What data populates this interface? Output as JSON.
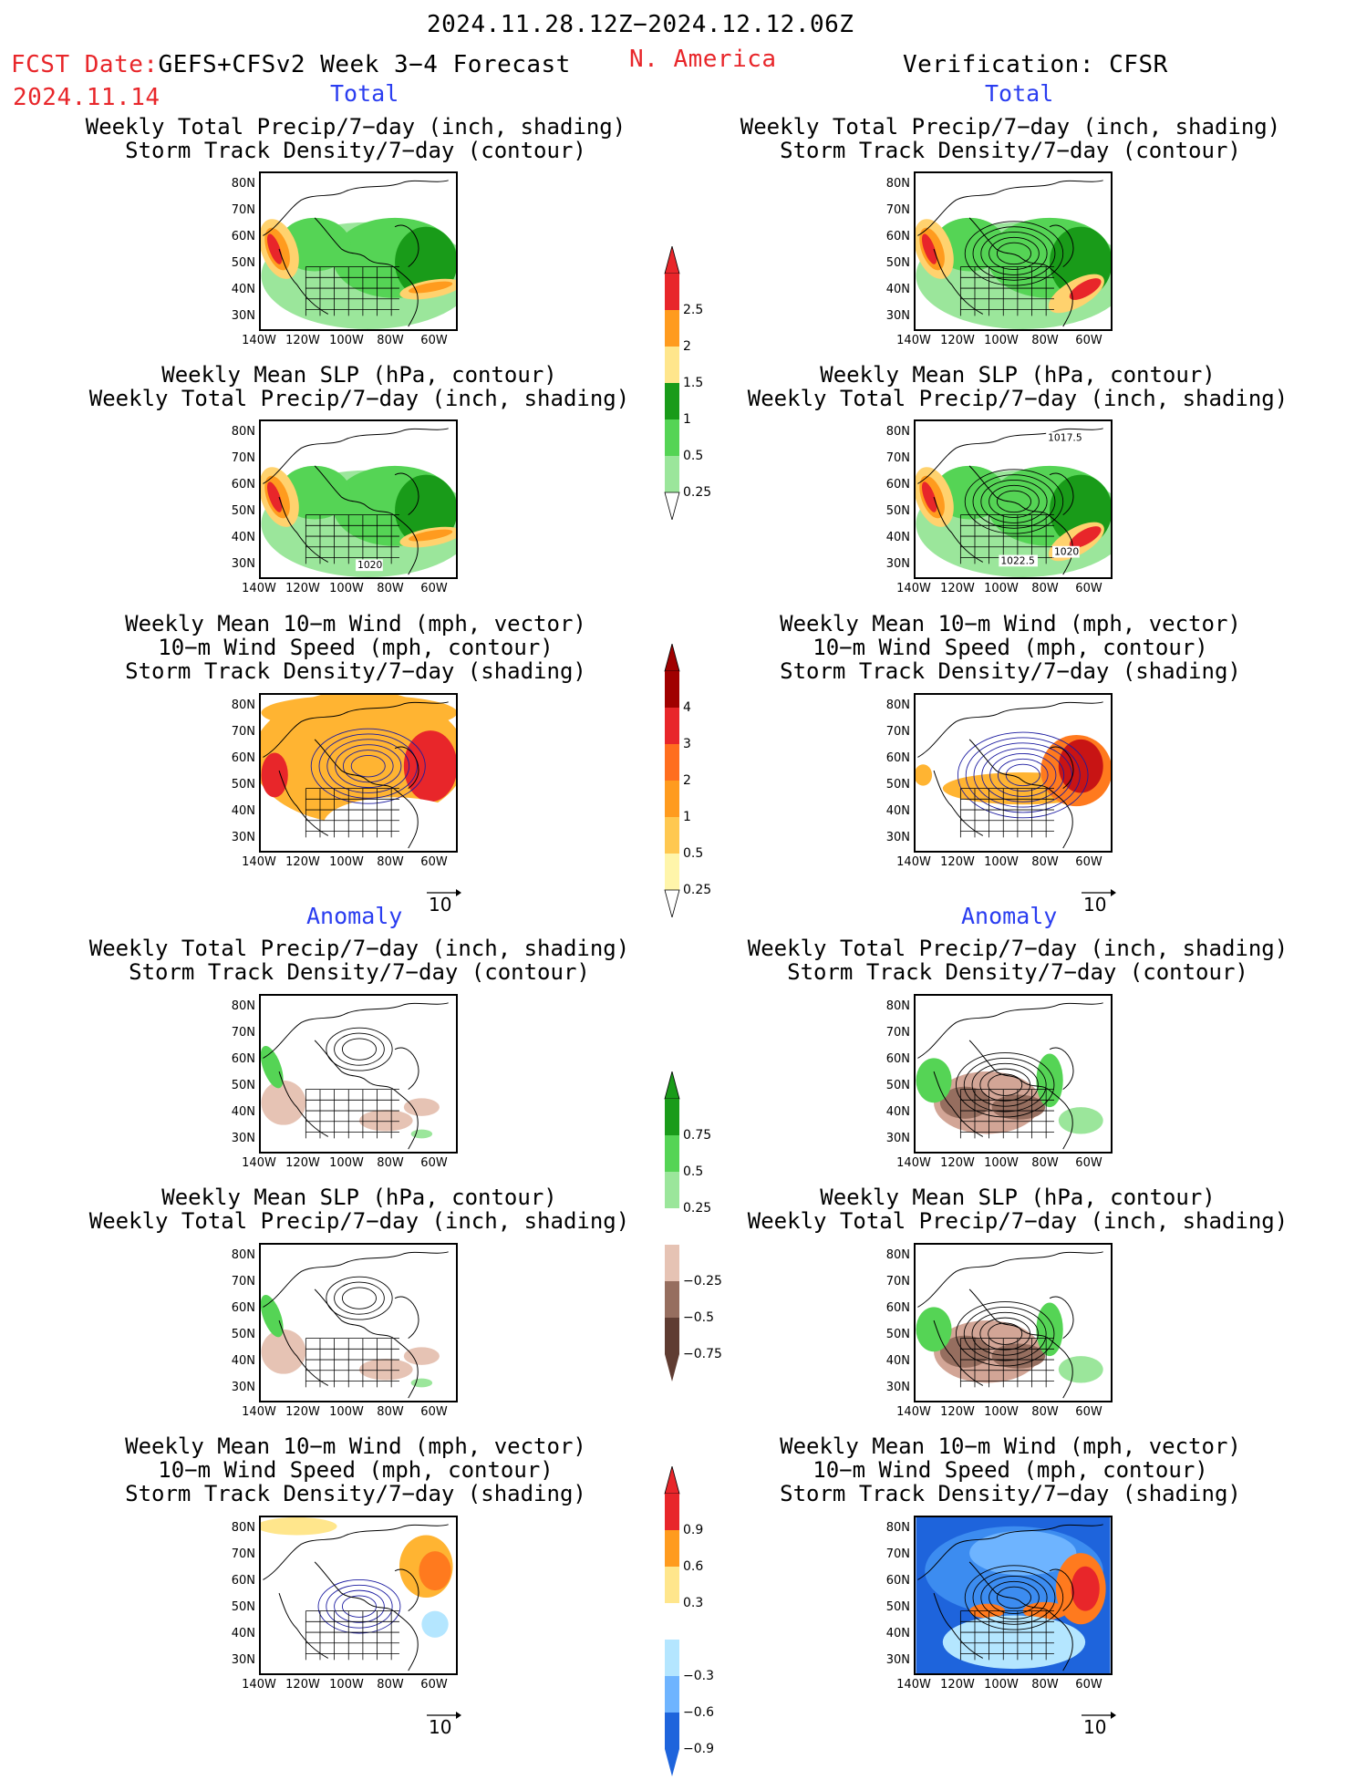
{
  "header": {
    "date_range": "2024.11.28.12Z−2024.12.12.06Z",
    "fcst_label": "FCST Date:",
    "model": "GEFS+CFSv2 Week 3−4 Forecast",
    "fcst_date": "2024.11.14",
    "region": "N. America",
    "verification": "Verification: CFSR"
  },
  "sections": {
    "total_left": "Total",
    "total_right": "Total",
    "anom_left": "Anomaly",
    "anom_right": "Anomaly"
  },
  "titles": {
    "precip_storm_1": "Weekly Total Precip/7−day (inch, shading)",
    "precip_storm_2": "Storm Track Density/7−day (contour)",
    "slp_1": "Weekly Mean SLP (hPa, contour)",
    "slp_2": "Weekly Total Precip/7−day (inch, shading)",
    "wind_1": "Weekly Mean 10−m Wind (mph, vector)",
    "wind_2": "10−m Wind Speed (mph, contour)",
    "wind_3": "Storm Track Density/7−day (shading)"
  },
  "axes": {
    "lat": [
      "80N",
      "70N",
      "60N",
      "50N",
      "40N",
      "30N"
    ],
    "lon": [
      "140W",
      "120W",
      "100W",
      "80W",
      "60W"
    ]
  },
  "vector_ref": "10",
  "colorbars": {
    "precip_total": [
      "2.5",
      "2",
      "1.5",
      "1",
      "0.5",
      "0.25"
    ],
    "storm_total": [
      "4",
      "3",
      "2",
      "1",
      "0.5",
      "0.25"
    ],
    "precip_anom": [
      "0.75",
      "0.5",
      "0.25",
      "−0.25",
      "−0.5",
      "−0.75"
    ],
    "storm_anom": [
      "0.9",
      "0.6",
      "0.3",
      "−0.3",
      "−0.6",
      "−0.9"
    ]
  },
  "contour_labels": {
    "slp_fcst": "1020",
    "slp_obs_top": "1017.5",
    "slp_obs_mid": "1022.5",
    "slp_obs_right": "1020"
  },
  "colors": {
    "red_text": "#e8262a",
    "blue_text": "#2a3df0"
  }
}
